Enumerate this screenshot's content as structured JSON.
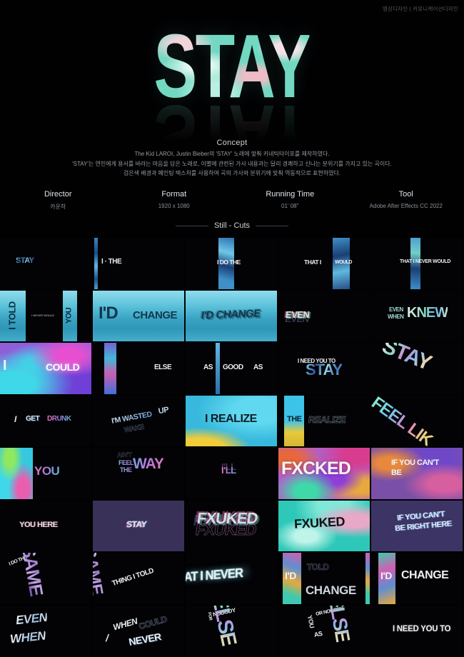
{
  "credit": "영상디자인 | 커뮤니케이션디자인",
  "hero": {
    "title": "STAY"
  },
  "concept": {
    "heading": "Concept",
    "lines": [
      "The Kid LAROI, Justin Bieber의 'STAY' 노래에 맞춰 키네틱타이포를 제작하였다.",
      "'STAY'는 연인에게 용서를 바라는 마음을 담은 노래로, 이별에 관련된 가사 내용과는 달리 경쾌하고 신나는 분위기를 가지고 있는 곡이다.",
      "검은색 배경과 페인팅 텍스처를 사용하여 곡의 가사와 분위기에 맞춰 역동적으로 표현하였다."
    ]
  },
  "info": {
    "items": [
      {
        "label": "Director",
        "value": "카운하"
      },
      {
        "label": "Format",
        "value": "1920 x 1080"
      },
      {
        "label": "Running Time",
        "value": "01' 08\""
      },
      {
        "label": "Tool",
        "value": "Adobe After Effects CC 2022"
      }
    ]
  },
  "stills": {
    "heading": "Still - Cuts",
    "tiles": [
      {
        "id": "r1c1",
        "parts": [
          "STAY"
        ]
      },
      {
        "id": "r1c2",
        "parts": [
          "I · THE"
        ]
      },
      {
        "id": "r1c3",
        "parts": [
          "I DO THE"
        ]
      },
      {
        "id": "r1c4",
        "parts": [
          "THAT I",
          "WOULD"
        ]
      },
      {
        "id": "r1c5",
        "parts": [
          "THAT I NEVER WOULD"
        ]
      },
      {
        "id": "r2c1",
        "parts": [
          "I TOLD",
          "I NEVER WOULD",
          "YOU"
        ]
      },
      {
        "id": "r2c2",
        "parts": [
          "I'D",
          "CHANGE"
        ]
      },
      {
        "id": "r2c3",
        "parts": [
          "I'D CHANGE"
        ]
      },
      {
        "id": "r2c4",
        "parts": [
          "EVEN"
        ]
      },
      {
        "id": "r2c5",
        "parts": [
          "EVEN",
          "WHEN",
          "KNEW"
        ]
      },
      {
        "id": "r3c1",
        "parts": [
          "I",
          "COULD"
        ]
      },
      {
        "id": "r3c2",
        "parts": [
          "ELSE"
        ]
      },
      {
        "id": "r3c3",
        "parts": [
          "AS",
          "GOOD",
          "AS"
        ]
      },
      {
        "id": "r3c4",
        "parts": [
          "I NEED YOU TO",
          "STAY"
        ]
      },
      {
        "id": "r3c5",
        "parts": [
          "STAY"
        ]
      },
      {
        "id": "r4c1",
        "parts": [
          "I",
          "GET",
          "DRUNK"
        ]
      },
      {
        "id": "r4c2",
        "parts": [
          "I'M WASTED",
          "UP",
          "WAKE"
        ]
      },
      {
        "id": "r4c3",
        "parts": [
          "I REALIZE"
        ]
      },
      {
        "id": "r4c4",
        "parts": [
          "THE",
          "REALIZE"
        ]
      },
      {
        "id": "r4c5",
        "parts": [
          "FEEL LIK"
        ]
      },
      {
        "id": "r5c1",
        "parts": [
          "YOU"
        ]
      },
      {
        "id": "r5c2",
        "parts": [
          "AIN'T",
          "FEEL",
          "THE",
          "WAY"
        ]
      },
      {
        "id": "r5c3",
        "parts": [
          "I'LL"
        ]
      },
      {
        "id": "r5c4",
        "parts": [
          "FXCKED"
        ]
      },
      {
        "id": "r5c5",
        "parts": [
          "IF YOU CAN'T",
          "BE"
        ]
      },
      {
        "id": "r6c1",
        "parts": [
          "YOU HERE"
        ]
      },
      {
        "id": "r6c2",
        "parts": [
          "STAY"
        ]
      },
      {
        "id": "r6c3",
        "parts": [
          "FXUKED",
          "FXUKED"
        ]
      },
      {
        "id": "r6c4",
        "parts": [
          "FXUKED"
        ]
      },
      {
        "id": "r6c5",
        "parts": [
          "IF YOU CAN'T",
          "BE RIGHT HERE"
        ]
      },
      {
        "id": "r7c1",
        "parts": [
          "I DO THE",
          "SAME"
        ]
      },
      {
        "id": "r7c2",
        "parts": [
          "SAME",
          "THING I TOLD"
        ]
      },
      {
        "id": "r7c3",
        "parts": [
          "AT I NEVER"
        ]
      },
      {
        "id": "r7c4",
        "parts": [
          "I'D",
          "TOLD",
          "CHANGE"
        ]
      },
      {
        "id": "r7c5",
        "parts": [
          "I'D",
          "CHANGE"
        ]
      },
      {
        "id": "r8c1",
        "parts": [
          "EVEN",
          "WHEN"
        ]
      },
      {
        "id": "r8c2",
        "parts": [
          "WHEN",
          "COULD",
          "/",
          "NEVER"
        ]
      },
      {
        "id": "r8c3",
        "parts": [
          "FOR",
          "NOBODY",
          "ELSE"
        ]
      },
      {
        "id": "r8c4",
        "parts": [
          "OR NOBODY",
          "YOU",
          "AS",
          "ELSE"
        ]
      },
      {
        "id": "r8c5",
        "parts": [
          "I NEED YOU TO"
        ]
      }
    ]
  }
}
